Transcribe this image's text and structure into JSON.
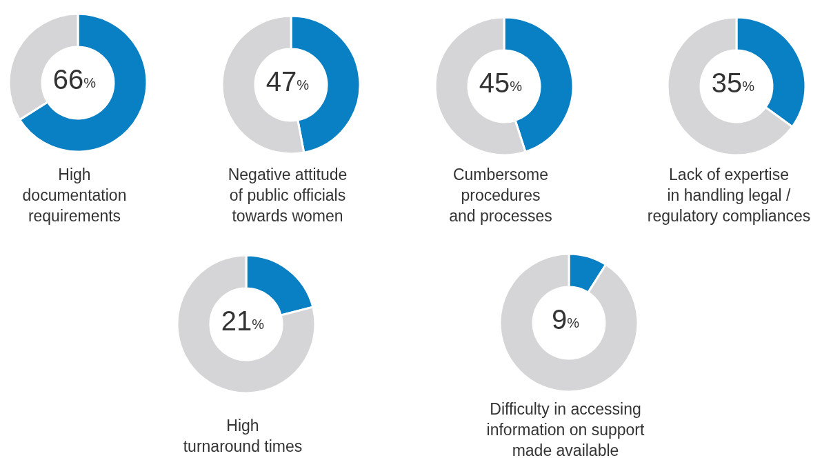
{
  "chart_data": [
    {
      "type": "donut",
      "title": "High\ndocumentation\nrequirements",
      "values": [
        66,
        34
      ],
      "colors": [
        "#0a80c4",
        "#d5d5d7"
      ],
      "annotations": [
        "66%"
      ]
    },
    {
      "type": "donut",
      "title": "Negative attitude\nof public officials\ntowards women",
      "values": [
        47,
        53
      ],
      "colors": [
        "#0a80c4",
        "#d5d5d7"
      ],
      "annotations": [
        "47%"
      ]
    },
    {
      "type": "donut",
      "title": "Cumbersome\nprocedures\nand processes",
      "values": [
        45,
        55
      ],
      "colors": [
        "#0a80c4",
        "#d5d5d7"
      ],
      "annotations": [
        "45%"
      ]
    },
    {
      "type": "donut",
      "title": "Lack of expertise\nin handling legal /\nregulatory compliances",
      "values": [
        35,
        65
      ],
      "colors": [
        "#0a80c4",
        "#d5d5d7"
      ],
      "annotations": [
        "35%"
      ]
    },
    {
      "type": "donut",
      "title": "High\nturnaround times",
      "values": [
        21,
        79
      ],
      "colors": [
        "#0a80c4",
        "#d5d5d7"
      ],
      "annotations": [
        "21%"
      ]
    },
    {
      "type": "donut",
      "title": "Difficulty in accessing\ninformation on support\nmade available",
      "values": [
        9,
        91
      ],
      "colors": [
        "#0a80c4",
        "#d5d5d7"
      ],
      "annotations": [
        "9%"
      ]
    }
  ]
}
